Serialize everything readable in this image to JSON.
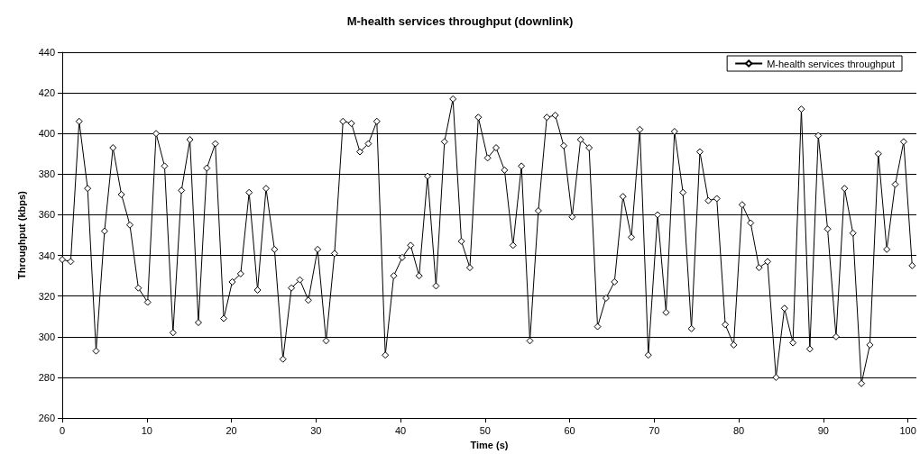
{
  "chart_data": {
    "type": "line",
    "title": "M-health services throughput (downlink)",
    "xlabel": "Time (s)",
    "ylabel": "Throughput (kbps)",
    "x": [
      0,
      1,
      2,
      3,
      4,
      5,
      6,
      7,
      8,
      9,
      10.1,
      11.1,
      12.1,
      13.1,
      14.1,
      15.1,
      16.1,
      17.1,
      18.1,
      19.1,
      20.1,
      21.1,
      22.1,
      23.1,
      24.1,
      25.1,
      26.1,
      27.1,
      28.1,
      29.1,
      30.2,
      31.2,
      32.2,
      33.2,
      34.2,
      35.2,
      36.2,
      37.2,
      38.2,
      39.2,
      40.2,
      41.2,
      42.2,
      43.2,
      44.2,
      45.2,
      46.2,
      47.2,
      48.2,
      49.2,
      50.3,
      51.3,
      52.3,
      53.3,
      54.3,
      55.3,
      56.3,
      57.3,
      58.3,
      59.3,
      60.3,
      61.3,
      62.3,
      63.3,
      64.3,
      65.3,
      66.3,
      67.3,
      68.3,
      69.3,
      70.4,
      71.4,
      72.4,
      73.4,
      74.4,
      75.4,
      76.4,
      77.4,
      78.4,
      79.4,
      80.4,
      81.4,
      82.4,
      83.4,
      84.4,
      85.4,
      86.4,
      87.4,
      88.4,
      89.4,
      90.5,
      91.5,
      92.5,
      93.5,
      94.5,
      95.5,
      96.5,
      97.5,
      98.5,
      99.5,
      100.5
    ],
    "series": [
      {
        "name": "M-health services throughput",
        "color": "#000000",
        "values": [
          338,
          337,
          406,
          373,
          293,
          352,
          393,
          370,
          355,
          324,
          317,
          400,
          384,
          302,
          372,
          397,
          307,
          383,
          395,
          309,
          327,
          331,
          371,
          323,
          373,
          343,
          289,
          324,
          328,
          318,
          343,
          298,
          341,
          406,
          405,
          391,
          395,
          406,
          291,
          330,
          339,
          345,
          330,
          379,
          325,
          396,
          417,
          347,
          334,
          408,
          388,
          393,
          382,
          345,
          384,
          298,
          362,
          408,
          409,
          394,
          359,
          397,
          393,
          305,
          319,
          327,
          369,
          349,
          402,
          291,
          360,
          312,
          401,
          371,
          304,
          391,
          367,
          368,
          306,
          296,
          365,
          356,
          334,
          337,
          280,
          314,
          297,
          412,
          294,
          399,
          353,
          300,
          373,
          351,
          277,
          296,
          390,
          343,
          375,
          396,
          335
        ]
      }
    ],
    "xlim": [
      0,
      101
    ],
    "xticks": [
      0,
      10,
      20,
      30,
      40,
      50,
      60,
      70,
      80,
      90,
      100
    ],
    "ylim": [
      260,
      440
    ],
    "yticks": [
      260,
      280,
      300,
      320,
      340,
      360,
      380,
      400,
      420,
      440
    ],
    "grid": "y",
    "legend": "top right",
    "marker": "diamond",
    "line_style": "solid"
  }
}
